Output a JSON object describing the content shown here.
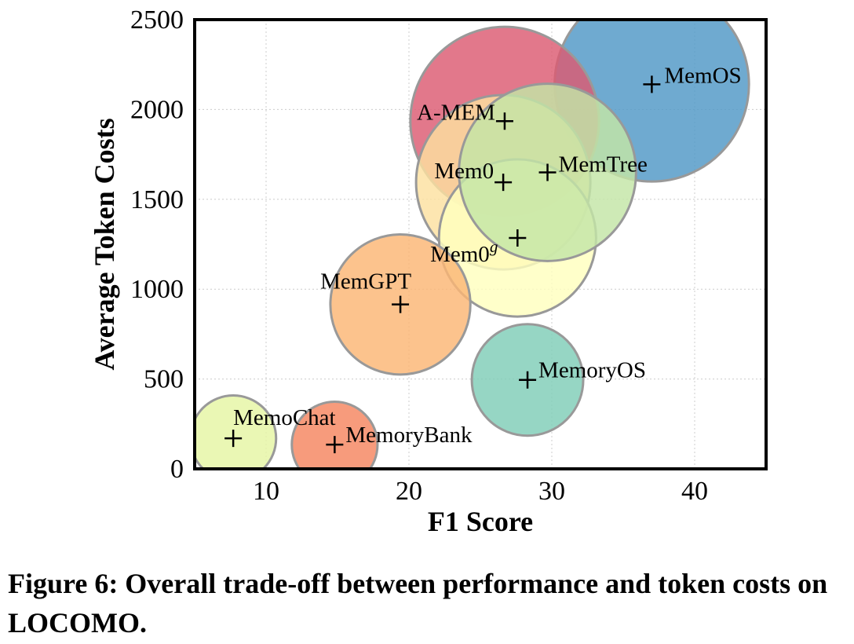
{
  "chart_data": {
    "type": "scatter",
    "variant": "bubble",
    "xlabel": "F1 Score",
    "ylabel": "Average Token Costs",
    "xlim": [
      5,
      45
    ],
    "ylim": [
      0,
      2500
    ],
    "xticks": [
      10,
      20,
      30,
      40
    ],
    "yticks": [
      0,
      500,
      1000,
      1500,
      2000,
      2500
    ],
    "grid": true,
    "bubble_size_encoding": "bubble area is not tied to a printed scale; radius given in F1-score units",
    "points": [
      {
        "label": "MemOS",
        "x": 37.0,
        "y": 2140,
        "radius": 6.8,
        "color": "#4f97c6"
      },
      {
        "label": "A-MEM",
        "x": 26.7,
        "y": 1935,
        "radius": 6.6,
        "color": "#dc5a72"
      },
      {
        "label": "Mem0",
        "x": 26.6,
        "y": 1595,
        "radius": 6.1,
        "color": "#fce0a0"
      },
      {
        "label": "Mem0",
        "label_sup": "g",
        "x": 27.6,
        "y": 1285,
        "radius": 5.5,
        "color": "#ffffbe"
      },
      {
        "label": "MemTree",
        "x": 29.7,
        "y": 1650,
        "radius": 6.2,
        "color": "#c3e5a6"
      },
      {
        "label": "MemGPT",
        "x": 19.4,
        "y": 915,
        "radius": 4.9,
        "color": "#fbb674"
      },
      {
        "label": "MemoryOS",
        "x": 28.3,
        "y": 495,
        "radius": 3.9,
        "color": "#7fcdb7"
      },
      {
        "label": "MemoChat",
        "x": 7.7,
        "y": 170,
        "radius": 3.0,
        "color": "#e5f5a3"
      },
      {
        "label": "MemoryBank",
        "x": 14.8,
        "y": 135,
        "radius": 3.0,
        "color": "#f5855f"
      }
    ]
  },
  "caption": "Figure 6: Overall trade-off between performance and token costs on LOCOMO."
}
